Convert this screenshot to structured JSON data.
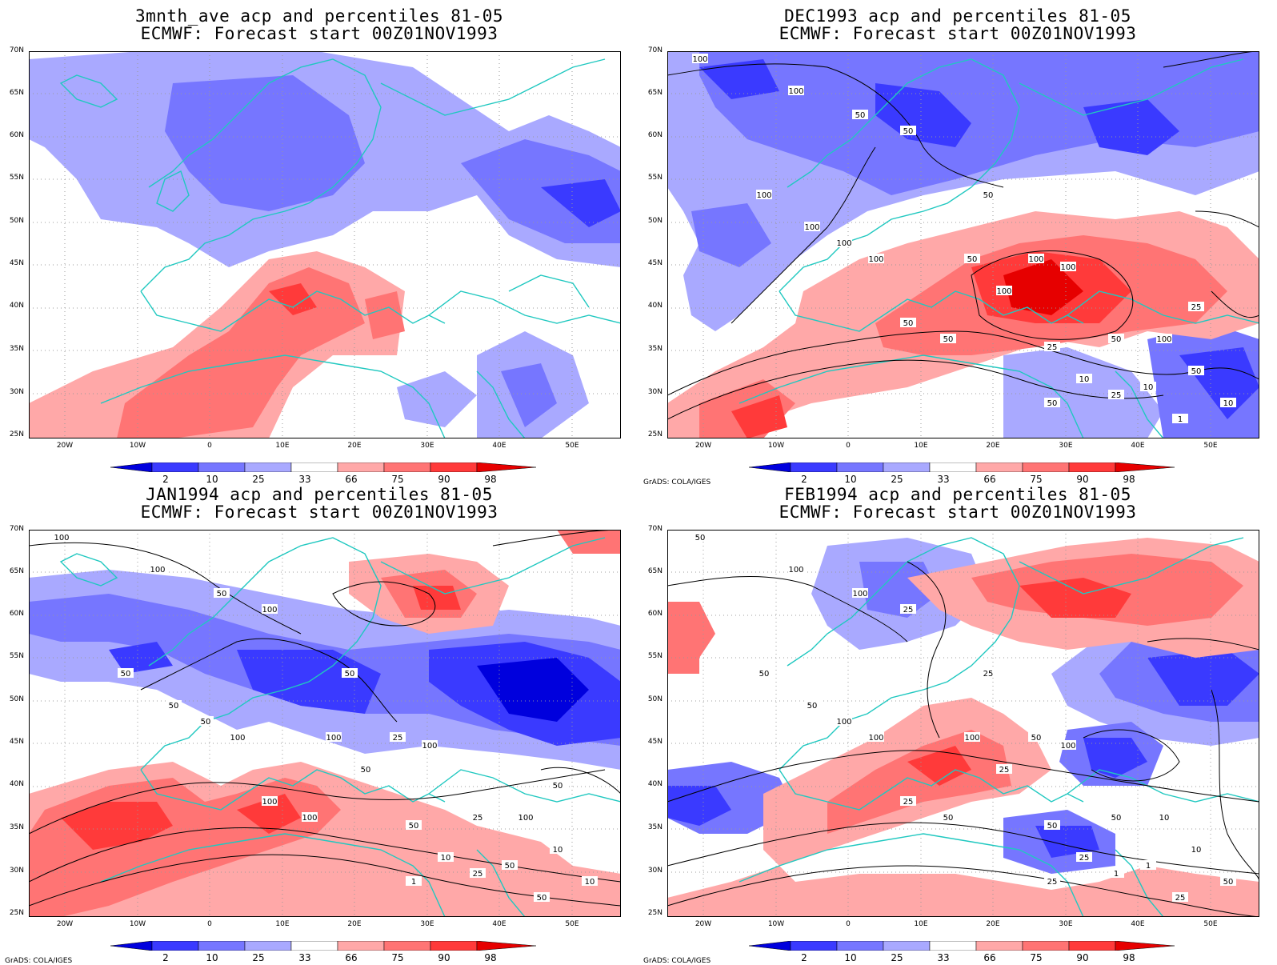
{
  "credit": "GrADS: COLA/IGES",
  "lat_labels": [
    "70N",
    "65N",
    "60N",
    "55N",
    "50N",
    "45N",
    "40N",
    "35N",
    "30N",
    "25N"
  ],
  "lon_labels": [
    "20W",
    "10W",
    "0",
    "10E",
    "20E",
    "30E",
    "40E",
    "50E"
  ],
  "colorbar": {
    "labels": [
      "2",
      "10",
      "25",
      "33",
      "66",
      "75",
      "90",
      "98"
    ],
    "colors": [
      "#0000dd",
      "#3a3aff",
      "#7676ff",
      "#a9a9ff",
      "#ffffff",
      "#ffa8a8",
      "#ff7474",
      "#ff3a3a",
      "#e60000"
    ]
  },
  "panels": [
    {
      "title1": "3mnth_ave acp and percentiles 81-05",
      "title2": "ECMWF: Forecast start 00Z01NOV1993",
      "show_credit": false,
      "contour_labels": []
    },
    {
      "title1": "DEC1993 acp and percentiles 81-05",
      "title2": "ECMWF: Forecast start 00Z01NOV1993",
      "show_credit": true,
      "contour_labels": [
        "100",
        "100",
        "50",
        "50",
        "100",
        "50",
        "50",
        "100",
        "100",
        "100",
        "100",
        "100",
        "100",
        "50",
        "50",
        "25",
        "50",
        "100",
        "50",
        "10",
        "25",
        "10",
        "50",
        "1",
        "10",
        "25"
      ]
    },
    {
      "title1": "JAN1994 acp and percentiles 81-05",
      "title2": "ECMWF: Forecast start 00Z01NOV1993",
      "show_credit": true,
      "contour_labels": [
        "100",
        "100",
        "50",
        "100",
        "50",
        "50",
        "100",
        "50",
        "100",
        "50",
        "25",
        "100",
        "50",
        "100",
        "100",
        "50",
        "25",
        "100",
        "10",
        "10",
        "25",
        "50",
        "1",
        "50",
        "10",
        "50"
      ]
    },
    {
      "title1": "FEB1994 acp and percentiles 81-05",
      "title2": "ECMWF: Forecast start 00Z01NOV1993",
      "show_credit": true,
      "contour_labels": [
        "50",
        "100",
        "100",
        "25",
        "50",
        "25",
        "100",
        "50",
        "100",
        "100",
        "50",
        "100",
        "25",
        "25",
        "50",
        "50",
        "50",
        "10",
        "10",
        "25",
        "1",
        "1",
        "25",
        "25",
        "50"
      ]
    }
  ]
}
